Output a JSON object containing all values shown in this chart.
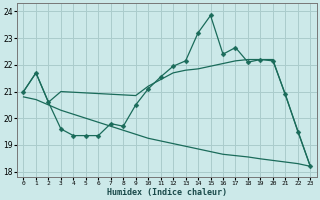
{
  "xlabel": "Humidex (Indice chaleur)",
  "xlim": [
    -0.5,
    23.5
  ],
  "ylim": [
    17.8,
    24.3
  ],
  "yticks": [
    18,
    19,
    20,
    21,
    22,
    23,
    24
  ],
  "xticks": [
    0,
    1,
    2,
    3,
    4,
    5,
    6,
    7,
    8,
    9,
    10,
    11,
    12,
    13,
    14,
    15,
    16,
    17,
    18,
    19,
    20,
    21,
    22,
    23
  ],
  "background_color": "#cce9e9",
  "grid_color": "#aacccc",
  "line_color": "#1a6b5a",
  "line1_x": [
    0,
    1,
    2,
    3,
    4,
    5,
    6,
    7,
    8,
    9,
    10,
    11,
    12,
    13,
    14,
    15,
    16,
    17,
    18,
    19,
    20,
    21,
    22,
    23
  ],
  "line1_y": [
    21.0,
    21.7,
    20.6,
    19.6,
    19.35,
    19.35,
    19.35,
    19.8,
    19.7,
    20.5,
    21.1,
    21.55,
    21.95,
    22.15,
    23.2,
    23.85,
    22.4,
    22.65,
    22.1,
    22.2,
    22.15,
    20.9,
    19.5,
    18.2
  ],
  "line2_x": [
    0,
    1,
    2,
    3,
    9,
    10,
    11,
    12,
    13,
    14,
    15,
    16,
    17,
    18,
    19,
    20,
    23
  ],
  "line2_y": [
    21.0,
    21.7,
    20.6,
    21.0,
    20.85,
    21.2,
    21.45,
    21.7,
    21.8,
    21.85,
    21.95,
    22.05,
    22.15,
    22.2,
    22.2,
    22.2,
    18.2
  ],
  "line3_x": [
    0,
    1,
    2,
    3,
    4,
    5,
    6,
    7,
    8,
    9,
    10,
    11,
    12,
    13,
    14,
    15,
    16,
    17,
    18,
    19,
    20,
    21,
    22,
    23
  ],
  "line3_y": [
    20.8,
    20.7,
    20.5,
    20.3,
    20.15,
    20.0,
    19.85,
    19.7,
    19.55,
    19.4,
    19.25,
    19.15,
    19.05,
    18.95,
    18.85,
    18.75,
    18.65,
    18.6,
    18.55,
    18.48,
    18.42,
    18.36,
    18.3,
    18.2
  ]
}
